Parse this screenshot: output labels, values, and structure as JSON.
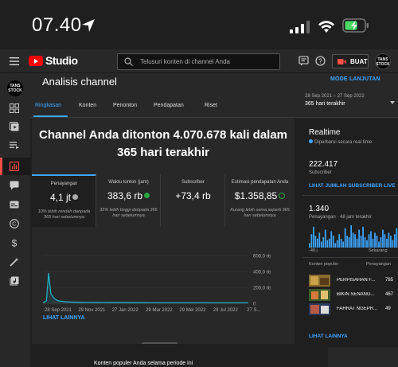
{
  "status_bar": {
    "time": "07.40"
  },
  "header": {
    "brand": "Studio",
    "search_placeholder": "Telusuri konten di channel Anda",
    "create_label": "BUAT",
    "avatar_text": "TANS STOCK"
  },
  "page": {
    "title": "Analisis channel",
    "mode_link": "MODE LANJUTAN",
    "date_range_small": "28 Sep 2021 – 27 Sep 2022",
    "date_range_label": "365 hari terakhir"
  },
  "tabs": [
    "Ringkasan",
    "Konten",
    "Penonton",
    "Pendapatan",
    "Riset"
  ],
  "overview": {
    "headline": "Channel Anda ditonton 4.070.678 kali dalam 365 hari terakhir",
    "metrics": [
      {
        "label": "Penayangan",
        "value": "4,1 jt",
        "note": "10% lebih rendah daripada 365 hari sebelumnya",
        "status": "down"
      },
      {
        "label": "Waktu tonton (jam)",
        "value": "383,6 rb",
        "note": "32% lebih tinggi daripada 365 hari sebelumnya",
        "status": "up"
      },
      {
        "label": "Subscriber",
        "value": "+73,4 rb",
        "note": "",
        "status": "none"
      },
      {
        "label": "Estimasi pendapatan Anda",
        "value": "$1.358,85",
        "note": "Kurang lebih sama seperti 365 hari sebelumnya",
        "status": "same"
      }
    ],
    "more_link": "LIHAT LAINNYA",
    "bottom_title": "Konten populer Anda selama periode ini"
  },
  "chart_data": {
    "type": "line",
    "x_tick_labels": [
      "28 Sep 2021",
      "29 Nov 2021",
      "27 Jan 2022",
      "29 Mar 2022",
      "29 Mei 2022",
      "28 Jul 2022",
      "27 S..."
    ],
    "y_tick_labels": [
      "0",
      "200,0 rb",
      "400,0 rb",
      "600,0 rb"
    ],
    "ylim": [
      0,
      600000
    ],
    "x": [
      0,
      6,
      10,
      14,
      20,
      24,
      28,
      34,
      40,
      50,
      60,
      80,
      100,
      120,
      140,
      160,
      180,
      200,
      220,
      240,
      260,
      280,
      300,
      320,
      340,
      364
    ],
    "y": [
      10000,
      30000,
      380000,
      120000,
      60000,
      40000,
      30000,
      25000,
      20000,
      16000,
      14000,
      12000,
      11000,
      10000,
      9500,
      9000,
      9000,
      8500,
      8500,
      8000,
      8000,
      8000,
      7500,
      7500,
      7500,
      7000
    ]
  },
  "realtime": {
    "title": "Realtime",
    "subtitle": "Diperbarui secara real time",
    "subscriber_value": "222.417",
    "subscriber_label": "Subscriber",
    "subscriber_link": "LIHAT JUMLAH SUBSCRIBER LIVE",
    "views_value": "1.340",
    "views_label": "Penayangan · 48 jam terakhir",
    "axis_left": "-48 j",
    "axis_right": "Sekarang",
    "bars": [
      3,
      9,
      14,
      8,
      6,
      10,
      4,
      7,
      12,
      5,
      6,
      11,
      8,
      3,
      5,
      9,
      6,
      4,
      13,
      8,
      7,
      15,
      10,
      9,
      6,
      12,
      8,
      14,
      7,
      5,
      9,
      11,
      6,
      10,
      8,
      4,
      7,
      12,
      9,
      6,
      10,
      8,
      5,
      9,
      13
    ],
    "popular_header_left": "Konten populer",
    "popular_header_right": "Penayangan",
    "popular": [
      {
        "title": "PERPISAHAN F...",
        "views": "785"
      },
      {
        "title": "BIKIN SENANG...",
        "views": "467"
      },
      {
        "title": "FAHRAT NGEPR...",
        "views": "49"
      }
    ],
    "more_link": "LIHAT LAINNYA"
  },
  "colors": {
    "accent": "#3ea6ff",
    "brand_red": "#ff0000",
    "positive_green": "#2ba640",
    "chart_line": "#1fb5ce"
  }
}
